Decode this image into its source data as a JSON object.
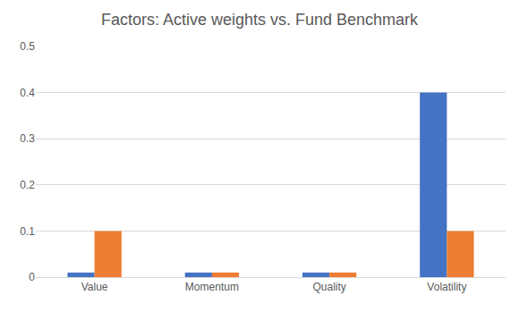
{
  "chart_data": {
    "type": "bar",
    "title": "Factors: Active weights vs. Fund Benchmark",
    "categories": [
      "Value",
      "Momentum",
      "Quality",
      "Volatility"
    ],
    "series": [
      {
        "color": "#4472c4",
        "values": [
          0.01,
          0.01,
          0.01,
          0.4
        ]
      },
      {
        "color": "#ed7d31",
        "values": [
          0.1,
          0.01,
          0.01,
          0.1
        ]
      }
    ],
    "ylim": [
      0,
      0.5
    ],
    "yticks": [
      0,
      0.1,
      0.2,
      0.3,
      0.4,
      0.5
    ],
    "grid": true
  }
}
